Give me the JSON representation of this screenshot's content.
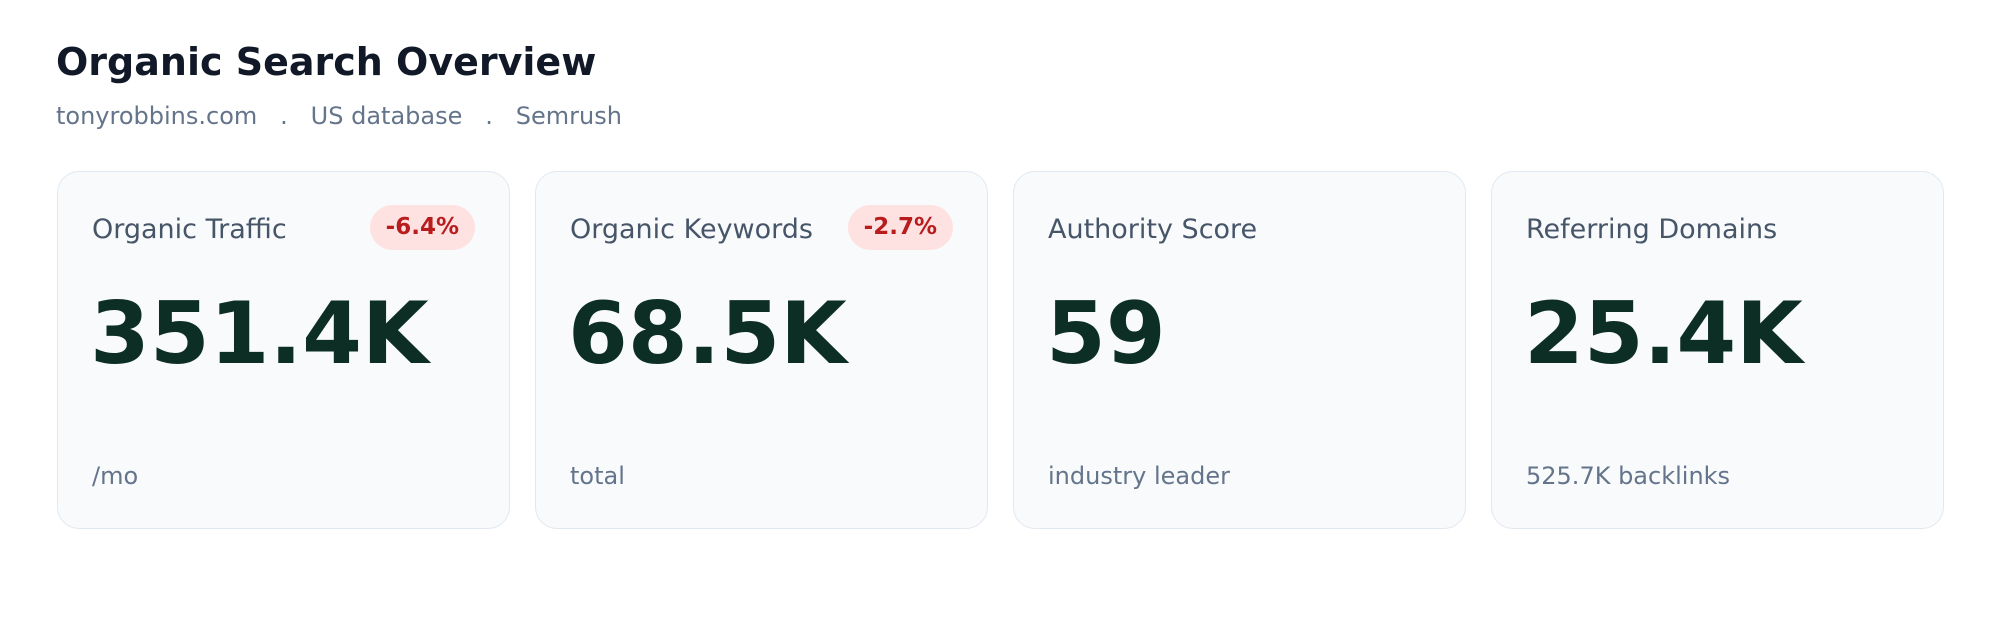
{
  "header": {
    "title": "Organic Search Overview",
    "subtitle": "tonyrobbins.com   .   US database   .   Semrush"
  },
  "cards": [
    {
      "label": "Organic Traffic",
      "badge": "-6.4%",
      "value": "351.4K",
      "note": "/mo"
    },
    {
      "label": "Organic Keywords",
      "badge": "-2.7%",
      "value": "68.5K",
      "note": "total"
    },
    {
      "label": "Authority Score",
      "value": "59",
      "note": "industry leader"
    },
    {
      "label": "Referring Domains",
      "value": "25.4K",
      "note": "525.7K backlinks"
    }
  ]
}
